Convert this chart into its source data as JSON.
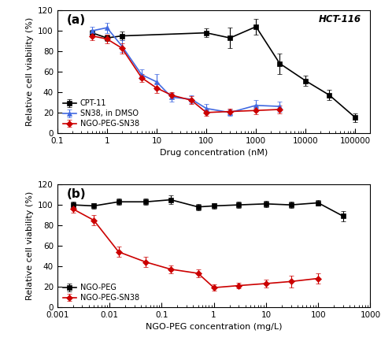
{
  "panel_a": {
    "title_label": "(a)",
    "hct_label": "HCT-116",
    "xlabel": "Drug concentration (nM)",
    "ylabel": "Relative cell viability (%)",
    "ylim": [
      0,
      120
    ],
    "yticks": [
      0,
      20,
      40,
      60,
      80,
      100,
      120
    ],
    "xlim_log": [
      0.15,
      200000
    ],
    "series": {
      "CPT11": {
        "x": [
          0.5,
          1.0,
          2.0,
          100,
          300,
          1000,
          3000,
          10000,
          30000,
          100000
        ],
        "y": [
          98,
          93,
          95,
          98,
          93,
          104,
          68,
          51,
          37,
          15
        ],
        "yerr": [
          3,
          3,
          4,
          4,
          10,
          8,
          10,
          5,
          5,
          4
        ],
        "color": "#000000",
        "marker": "s",
        "label": "CPT-11"
      },
      "SN38": {
        "x": [
          0.5,
          1.0,
          2.0,
          5.0,
          10,
          20,
          50,
          100,
          300,
          1000,
          3000
        ],
        "y": [
          100,
          103,
          85,
          57,
          50,
          35,
          33,
          24,
          20,
          27,
          26
        ],
        "yerr": [
          4,
          5,
          6,
          5,
          8,
          4,
          4,
          4,
          3,
          5,
          5
        ],
        "color": "#4169e1",
        "marker": "^",
        "label": "SN38, in DMSO"
      },
      "NGO_PEG_SN38_a": {
        "x": [
          0.5,
          1.0,
          2.0,
          5.0,
          10,
          20,
          50,
          100,
          300,
          1000,
          3000
        ],
        "y": [
          95,
          92,
          83,
          54,
          44,
          37,
          32,
          20,
          21,
          22,
          23
        ],
        "yerr": [
          4,
          4,
          5,
          4,
          5,
          3,
          4,
          3,
          3,
          4,
          4
        ],
        "color": "#cc0000",
        "marker": "D",
        "label": "NGO-PEG-SN38"
      }
    }
  },
  "panel_b": {
    "title_label": "(b)",
    "xlabel": "NGO-PEG concentration (mg/L)",
    "ylabel": "Relative cell viability (%)",
    "ylim": [
      0,
      120
    ],
    "yticks": [
      0,
      20,
      40,
      60,
      80,
      100,
      120
    ],
    "xlim_log": [
      0.001,
      1000
    ],
    "series": {
      "NGO_PEG": {
        "x": [
          0.002,
          0.005,
          0.015,
          0.05,
          0.15,
          0.5,
          1.0,
          3.0,
          10,
          30,
          100,
          300
        ],
        "y": [
          100,
          99,
          103,
          103,
          105,
          98,
          99,
          100,
          101,
          100,
          102,
          89
        ],
        "yerr": [
          3,
          3,
          3,
          3,
          4,
          3,
          3,
          3,
          3,
          3,
          3,
          5
        ],
        "color": "#000000",
        "marker": "s",
        "label": "NGO-PEG"
      },
      "NGO_PEG_SN38_b": {
        "x": [
          0.002,
          0.005,
          0.015,
          0.05,
          0.15,
          0.5,
          1.0,
          3.0,
          10,
          30,
          100
        ],
        "y": [
          96,
          85,
          54,
          44,
          37,
          33,
          19,
          21,
          23,
          25,
          28
        ],
        "yerr": [
          4,
          5,
          5,
          5,
          4,
          4,
          3,
          3,
          4,
          6,
          5
        ],
        "color": "#cc0000",
        "marker": "D",
        "label": "NGO-PEG-SN38"
      }
    }
  }
}
